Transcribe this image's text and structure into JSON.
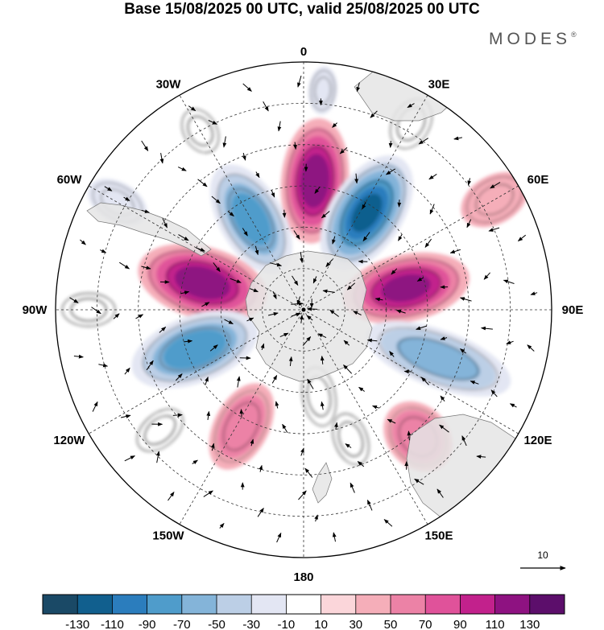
{
  "chart_data": {
    "type": "heatmap",
    "title": "Base 15/08/2025 00 UTC, valid 25/08/2025 00 UTC",
    "brand": "MODES",
    "brand_mark": "®",
    "projection": "south-polar-stereographic",
    "longitude_labels": [
      "0",
      "30E",
      "60E",
      "90E",
      "120E",
      "150E",
      "180",
      "150W",
      "120W",
      "90W",
      "60W",
      "30W"
    ],
    "longitude_degrees": [
      0,
      30,
      60,
      90,
      120,
      150,
      180,
      -150,
      -120,
      -90,
      -60,
      -30
    ],
    "colorbar": {
      "tick_labels": [
        "-130",
        "-110",
        "-90",
        "-70",
        "-50",
        "-30",
        "-10",
        "10",
        "30",
        "50",
        "70",
        "90",
        "110",
        "130"
      ],
      "colors": [
        "#1a4966",
        "#115f8e",
        "#2b7dbd",
        "#4f9ccb",
        "#84b4d9",
        "#bccfe6",
        "#e3e6f3",
        "#ffffff",
        "#fbd6da",
        "#f5aeb9",
        "#ec82a6",
        "#e0529a",
        "#c2218c",
        "#8e1281",
        "#5c0e6b"
      ]
    },
    "anomaly_centers": [
      {
        "lon": 5,
        "lat": -43,
        "value": 120,
        "ry": 78,
        "rx": 42
      },
      {
        "lon": 33,
        "lat": -48,
        "value": -130,
        "ry": 80,
        "rx": 45
      },
      {
        "lon": -30,
        "lat": -52,
        "value": -95,
        "ry": 75,
        "rx": 40
      },
      {
        "lon": 78,
        "lat": -52,
        "value": 110,
        "ry": 80,
        "rx": 42
      },
      {
        "lon": -75,
        "lat": -52,
        "value": 120,
        "ry": 82,
        "rx": 45
      },
      {
        "lon": -110,
        "lat": -48,
        "value": -100,
        "ry": 82,
        "rx": 42
      },
      {
        "lon": 110,
        "lat": -38,
        "value": -75,
        "ry": 95,
        "rx": 36
      },
      {
        "lon": -152,
        "lat": -42,
        "value": 55,
        "ry": 58,
        "rx": 34
      },
      {
        "lon": 138,
        "lat": -28,
        "value": 60,
        "ry": 48,
        "rx": 38
      },
      {
        "lon": 5,
        "lat": -10,
        "value": -35,
        "ry": 30,
        "rx": 18
      },
      {
        "lon": 30,
        "lat": -12,
        "value": 25,
        "ry": 40,
        "rx": 28
      },
      {
        "lon": -30,
        "lat": -15,
        "value": 25,
        "ry": 35,
        "rx": 25
      },
      {
        "lon": -60,
        "lat": -12,
        "value": -30,
        "ry": 40,
        "rx": 25
      },
      {
        "lon": 60,
        "lat": -10,
        "value": 30,
        "ry": 45,
        "rx": 30
      },
      {
        "lon": -90,
        "lat": -12,
        "value": 25,
        "ry": 40,
        "rx": 25
      },
      {
        "lon": 160,
        "lat": -40,
        "value": -20,
        "ry": 40,
        "rx": 25
      },
      {
        "lon": 170,
        "lat": -58,
        "value": 25,
        "ry": 45,
        "rx": 25
      },
      {
        "lon": -130,
        "lat": -22,
        "value": -20,
        "ry": 40,
        "rx": 25
      }
    ],
    "reference_vector": {
      "label": "10"
    }
  }
}
